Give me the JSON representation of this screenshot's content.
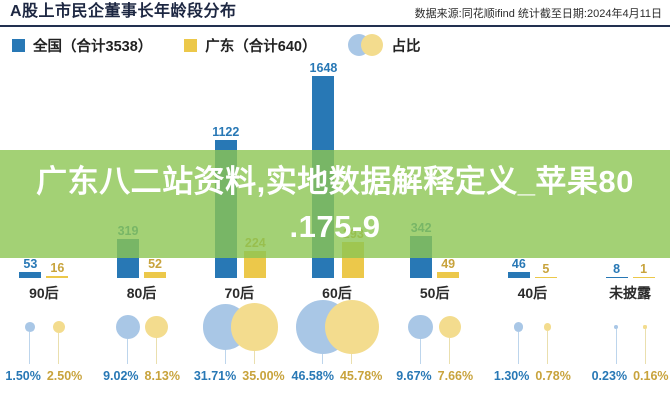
{
  "header": {
    "title": "A股上市民企董事长年龄段分布",
    "source": "数据来源:同花顺ifind  统计截至日期:2024年4月11日"
  },
  "legend": {
    "national_label": "全国（合计3538）",
    "guangdong_label": "广东（合计640）",
    "ratio_label": "占比"
  },
  "overlay": {
    "line1": "广东八二站资料,实地数据解释定义_苹果80",
    "line2": ".175-9"
  },
  "colors": {
    "bar_national": "#2878b5",
    "bar_guangdong": "#ecc84a",
    "value_label_national": "#2878b5",
    "value_label_guangdong": "#c8a33c",
    "bubble_national": "#a9c7e6",
    "bubble_guangdong": "#f3dc8e",
    "stem_national": "#bdd5ec",
    "stem_guangdong": "#eadfae",
    "pct_national": "#2878b5",
    "pct_guangdong": "#c8a33c",
    "overlay_green": "rgba(140,198,83,0.8)",
    "header_divider": "#223050"
  },
  "chart_data": {
    "type": "bar",
    "title": "A股上市民企董事长年龄段分布",
    "categories": [
      "90后",
      "80后",
      "70后",
      "60后",
      "50后",
      "40后",
      "未披露"
    ],
    "series": [
      {
        "name": "全国",
        "total": 3538,
        "values": [
          53,
          319,
          1122,
          1648,
          342,
          46,
          8
        ],
        "pct": [
          "1.50%",
          "9.02%",
          "31.71%",
          "46.58%",
          "9.67%",
          "1.30%",
          "0.23%"
        ]
      },
      {
        "name": "广东",
        "total": 640,
        "values": [
          16,
          52,
          224,
          293,
          49,
          5,
          1
        ],
        "pct": [
          "2.50%",
          "8.13%",
          "35.00%",
          "45.78%",
          "7.66%",
          "0.78%",
          "0.16%"
        ]
      }
    ],
    "ylim": [
      0,
      1700
    ],
    "grid": false,
    "legend_position": "top",
    "bubble_note": "占比 bubbles below axis are sized by percentage"
  }
}
